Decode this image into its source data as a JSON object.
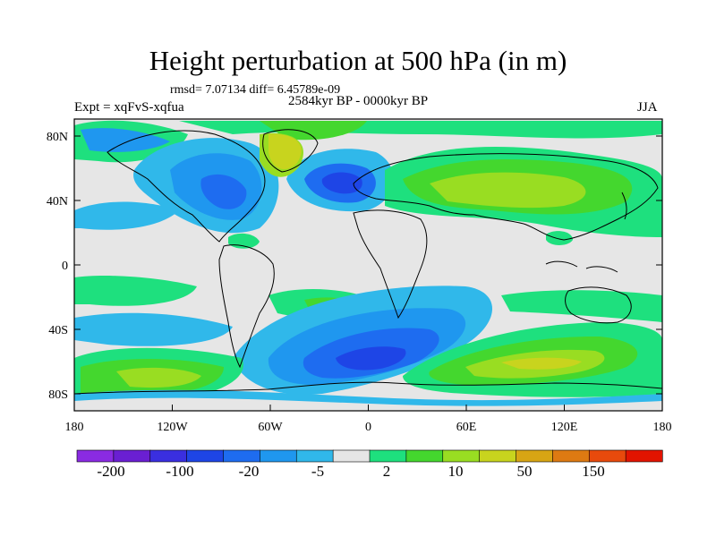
{
  "title": "Height perturbation at 500 hPa (in m)",
  "stats": "rmsd= 7.07134 diff= 6.45789e-09",
  "experiment": "Expt = xqFvS-xqfua",
  "period": "2584kyr BP - 0000kyr BP",
  "season": "JJA",
  "axes": {
    "lat_ticks": [
      "80N",
      "40N",
      "0",
      "40S",
      "80S"
    ],
    "lon_ticks": [
      "180",
      "120W",
      "60W",
      "0",
      "60E",
      "120E",
      "180"
    ]
  },
  "colorbar": {
    "colors": [
      "#8a2be2",
      "#6a1fd2",
      "#3a2fe0",
      "#1e45e6",
      "#1e6cf0",
      "#1f97ef",
      "#30b8ea",
      "#e6e6e6",
      "#1ee07e",
      "#44d72e",
      "#99dd22",
      "#c8d41e",
      "#d8a514",
      "#de7a12",
      "#e84a0c",
      "#e21400"
    ],
    "labels": [
      "-200",
      "-100",
      "-20",
      "-5",
      "2",
      "10",
      "50",
      "150"
    ]
  },
  "palette": {
    "neutral": "#e6e6e6",
    "light_blue": "#30b8ea",
    "mid_blue": "#1f97ef",
    "blue": "#1e6cf0",
    "deep_blue": "#1e45e6",
    "green": "#1ee07e",
    "bright_green": "#44d72e",
    "lime": "#99dd22",
    "yellow_green": "#c8d41e",
    "land_outline": "#000000"
  }
}
